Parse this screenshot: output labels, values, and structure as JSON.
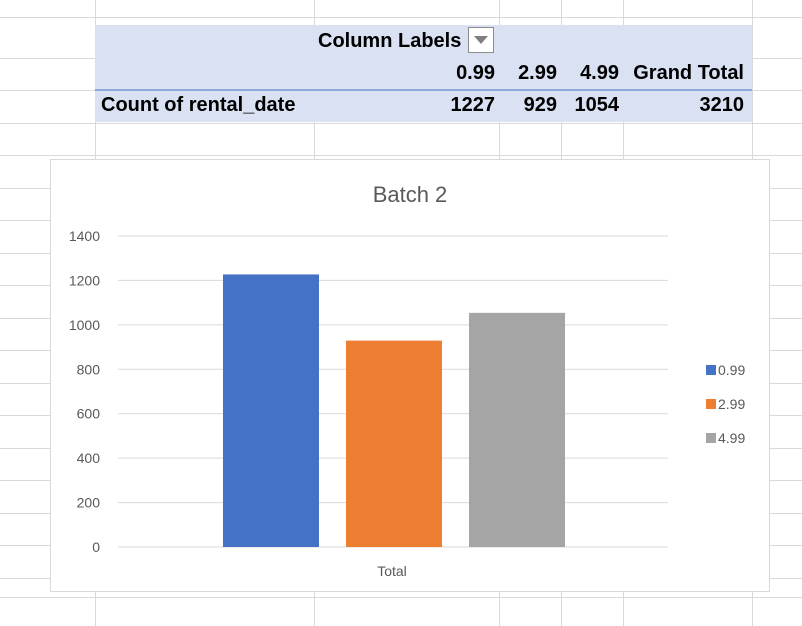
{
  "pivot": {
    "column_labels": "Column Labels",
    "headers": [
      "0.99",
      "2.99",
      "4.99",
      "Grand Total"
    ],
    "row_label": "Count of rental_date",
    "values": [
      "1227",
      "929",
      "1054",
      "3210"
    ]
  },
  "chart_data": {
    "type": "bar",
    "title": "Batch 2",
    "categories": [
      "Total"
    ],
    "series": [
      {
        "name": "0.99",
        "values": [
          1227
        ],
        "color": "#4472c4"
      },
      {
        "name": "2.99",
        "values": [
          929
        ],
        "color": "#ed7d31"
      },
      {
        "name": "4.99",
        "values": [
          1054
        ],
        "color": "#a5a5a5"
      }
    ],
    "ylim": [
      0,
      1400
    ],
    "yticks": [
      "0",
      "200",
      "400",
      "600",
      "800",
      "1000",
      "1200",
      "1400"
    ],
    "grid": true,
    "legend": "right"
  },
  "colors": {
    "pivot_fill": "#d9e1f2",
    "pivot_border": "#8ea9db"
  }
}
